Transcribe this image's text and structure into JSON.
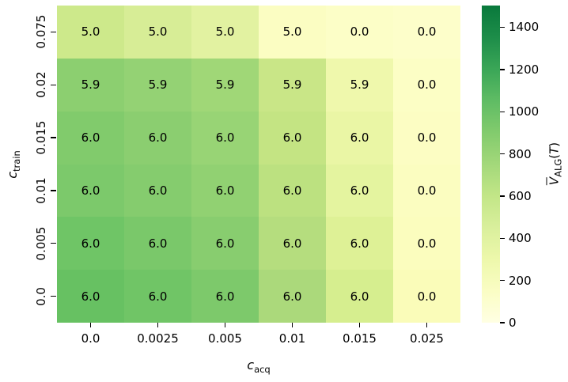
{
  "chart_data": {
    "type": "heatmap",
    "title": "",
    "xlabel": {
      "symbol": "c",
      "subscript": "acq"
    },
    "ylabel": {
      "symbol": "c",
      "subscript": "train"
    },
    "x_tick_labels": [
      "0.0",
      "0.0025",
      "0.005",
      "0.01",
      "0.015",
      "0.025"
    ],
    "y_tick_labels": [
      "0.075",
      "0.02",
      "0.015",
      "0.01",
      "0.005",
      "0.0"
    ],
    "rows": [
      {
        "y": "0.075",
        "values": [
          "5.0",
          "5.0",
          "5.0",
          "5.0",
          "0.0",
          "0.0"
        ],
        "colors": [
          "#cde98b",
          "#d7ed96",
          "#e2f2a1",
          "#fbfdc2",
          "#fcfec7",
          "#fdfeca"
        ]
      },
      {
        "y": "0.02",
        "values": [
          "5.9",
          "5.9",
          "5.9",
          "5.9",
          "5.9",
          "0.0"
        ],
        "colors": [
          "#8ccf70",
          "#94d274",
          "#a0d777",
          "#c9e687",
          "#eff8ac",
          "#fcfec5"
        ]
      },
      {
        "y": "0.015",
        "values": [
          "6.0",
          "6.0",
          "6.0",
          "6.0",
          "6.0",
          "0.0"
        ],
        "colors": [
          "#81cb6c",
          "#8bce70",
          "#98d475",
          "#c4e483",
          "#eaf6a5",
          "#fcfdc3"
        ]
      },
      {
        "y": "0.01",
        "values": [
          "6.0",
          "6.0",
          "6.0",
          "6.0",
          "6.0",
          "0.0"
        ],
        "colors": [
          "#7cc96b",
          "#85cc6e",
          "#91d172",
          "#bce180",
          "#e4f49f",
          "#fbfdc0"
        ]
      },
      {
        "y": "0.005",
        "values": [
          "6.0",
          "6.0",
          "6.0",
          "6.0",
          "6.0",
          "0.0"
        ],
        "colors": [
          "#6fc566",
          "#7ac86a",
          "#88cd6f",
          "#b5dd7e",
          "#def196",
          "#fbfdbe"
        ]
      },
      {
        "y": "0.0",
        "values": [
          "6.0",
          "6.0",
          "6.0",
          "6.0",
          "6.0",
          "0.0"
        ],
        "colors": [
          "#67c162",
          "#70c566",
          "#7dc96b",
          "#abd97b",
          "#d6ee8f",
          "#fafcb9"
        ]
      }
    ],
    "annotation_color": "#000000",
    "colorbar": {
      "label": {
        "symbol": "V",
        "overline": true,
        "subscript": "ALG",
        "arg_open": "(",
        "arg_symbol": "T",
        "arg_close": ")"
      },
      "tick_labels": [
        "0",
        "200",
        "400",
        "600",
        "800",
        "1000",
        "1200",
        "1400"
      ],
      "tick_values": [
        0,
        200,
        400,
        600,
        800,
        1000,
        1200,
        1400
      ],
      "scale_min": 0,
      "scale_max": 1503,
      "gradient_bottom_to_top": [
        "#ffffe3",
        "#fafdc4",
        "#edf8ab",
        "#d9ef9c",
        "#c2e687",
        "#a3d87a",
        "#82cb6d",
        "#5fbc64",
        "#3aa657",
        "#1d8d49",
        "#09793c"
      ]
    }
  }
}
